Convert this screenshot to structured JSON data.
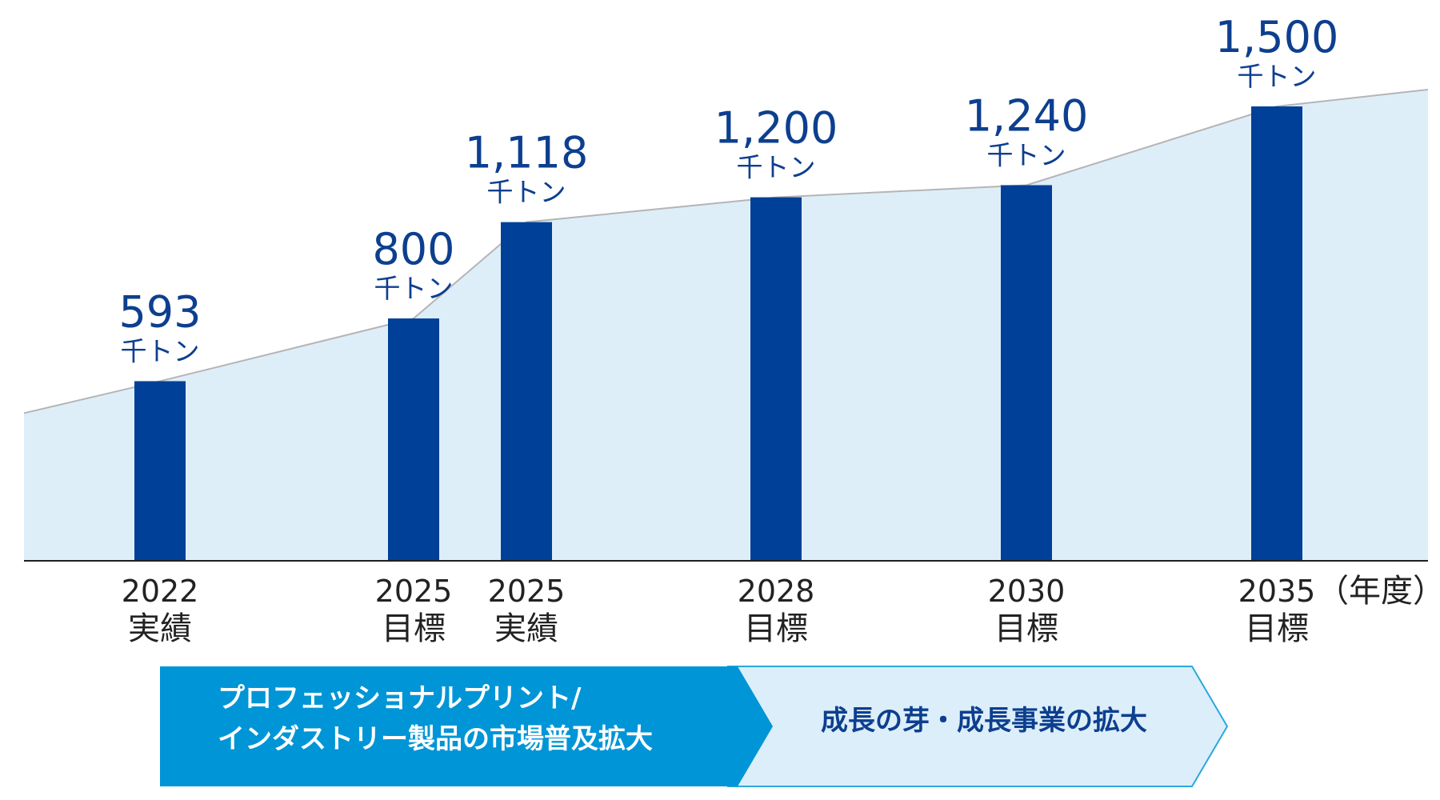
{
  "colors": {
    "bar": "#004098",
    "area_fill": "#deeef9",
    "area_stroke": "#b5b5b5",
    "axis": "#1f1f1f",
    "value_text": "#0d3f8f",
    "phase1_fill": "#0095d6",
    "phase2_fill": "#dceef9",
    "phase2_stroke": "#2aa8dd"
  },
  "chart_data": {
    "type": "bar",
    "categories": [
      "2022 実績",
      "2025 目標",
      "2025 実績",
      "2028 目標",
      "2030 目標",
      "2035 目標"
    ],
    "x": [
      2022,
      2025,
      2025,
      2028,
      2030,
      2035
    ],
    "values": [
      593,
      800,
      1118,
      1200,
      1240,
      1500
    ],
    "value_unit": "千トン",
    "axis_unit": "（年度）",
    "title": "",
    "xlabel": "",
    "ylabel": "",
    "ylim": [
      0,
      1500
    ],
    "grid": false,
    "legend": "none",
    "bars": [
      {
        "year": "2022",
        "status": "実績",
        "value": 593,
        "value_label": "593",
        "unit": "千トン"
      },
      {
        "year": "2025",
        "status": "目標",
        "value": 800,
        "value_label": "800",
        "unit": "千トン"
      },
      {
        "year": "2025",
        "status": "実績",
        "value": 1118,
        "value_label": "1,118",
        "unit": "千トン"
      },
      {
        "year": "2028",
        "status": "目標",
        "value": 1200,
        "value_label": "1,200",
        "unit": "千トン"
      },
      {
        "year": "2030",
        "status": "目標",
        "value": 1240,
        "value_label": "1,240",
        "unit": "千トン"
      },
      {
        "year": "2035",
        "status": "目標",
        "value": 1500,
        "value_label": "1,500",
        "unit": "千トン"
      }
    ],
    "trend_area": true
  },
  "phases": [
    {
      "lines": [
        "プロフェッショナルプリント/",
        "インダストリー製品の市場普及拡大"
      ]
    },
    {
      "lines": [
        "成長の芽・成長事業の拡大"
      ]
    }
  ]
}
